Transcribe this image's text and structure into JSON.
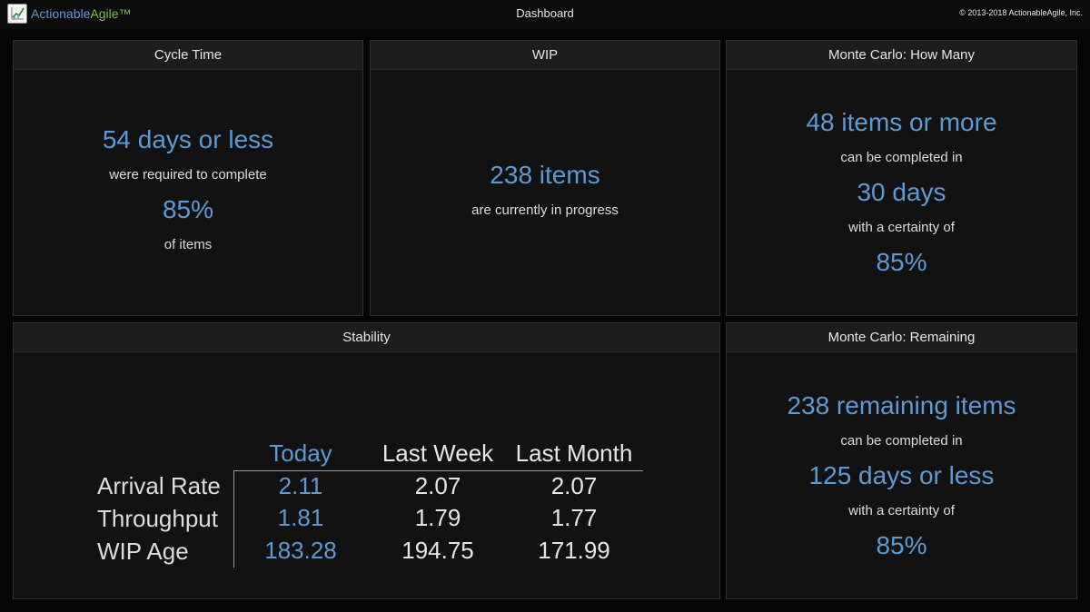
{
  "header": {
    "logo_part1": "Actionable",
    "logo_part2": "Agile™",
    "title": "Dashboard",
    "copyright": "© 2013-2018 ActionableAgile, Inc."
  },
  "cycle_time": {
    "title": "Cycle Time",
    "days": "54 days or less",
    "text1": "were required to complete",
    "percent": "85%",
    "text2": "of items"
  },
  "wip": {
    "title": "WIP",
    "count": "238 items",
    "text": "are currently in progress"
  },
  "mc_how_many": {
    "title": "Monte Carlo: How Many",
    "items": "48 items or more",
    "text1": "can be completed in",
    "days": "30 days",
    "text2": "with a certainty of",
    "percent": "85%"
  },
  "stability": {
    "title": "Stability",
    "columns": [
      "Today",
      "Last Week",
      "Last Month"
    ],
    "rows": [
      {
        "label": "Arrival Rate",
        "values": [
          "2.11",
          "2.07",
          "2.07"
        ]
      },
      {
        "label": "Throughput",
        "values": [
          "1.81",
          "1.79",
          "1.77"
        ]
      },
      {
        "label": "WIP Age",
        "values": [
          "183.28",
          "194.75",
          "171.99"
        ]
      }
    ]
  },
  "mc_remaining": {
    "title": "Monte Carlo: Remaining",
    "items": "238 remaining items",
    "text1": "can be completed in",
    "days": "125 days or less",
    "text2": "with a certainty of",
    "percent": "85%"
  },
  "colors": {
    "accent": "#5b9bd5",
    "logo_green": "#7cc04a",
    "background": "#050505",
    "panel": "#121212"
  }
}
